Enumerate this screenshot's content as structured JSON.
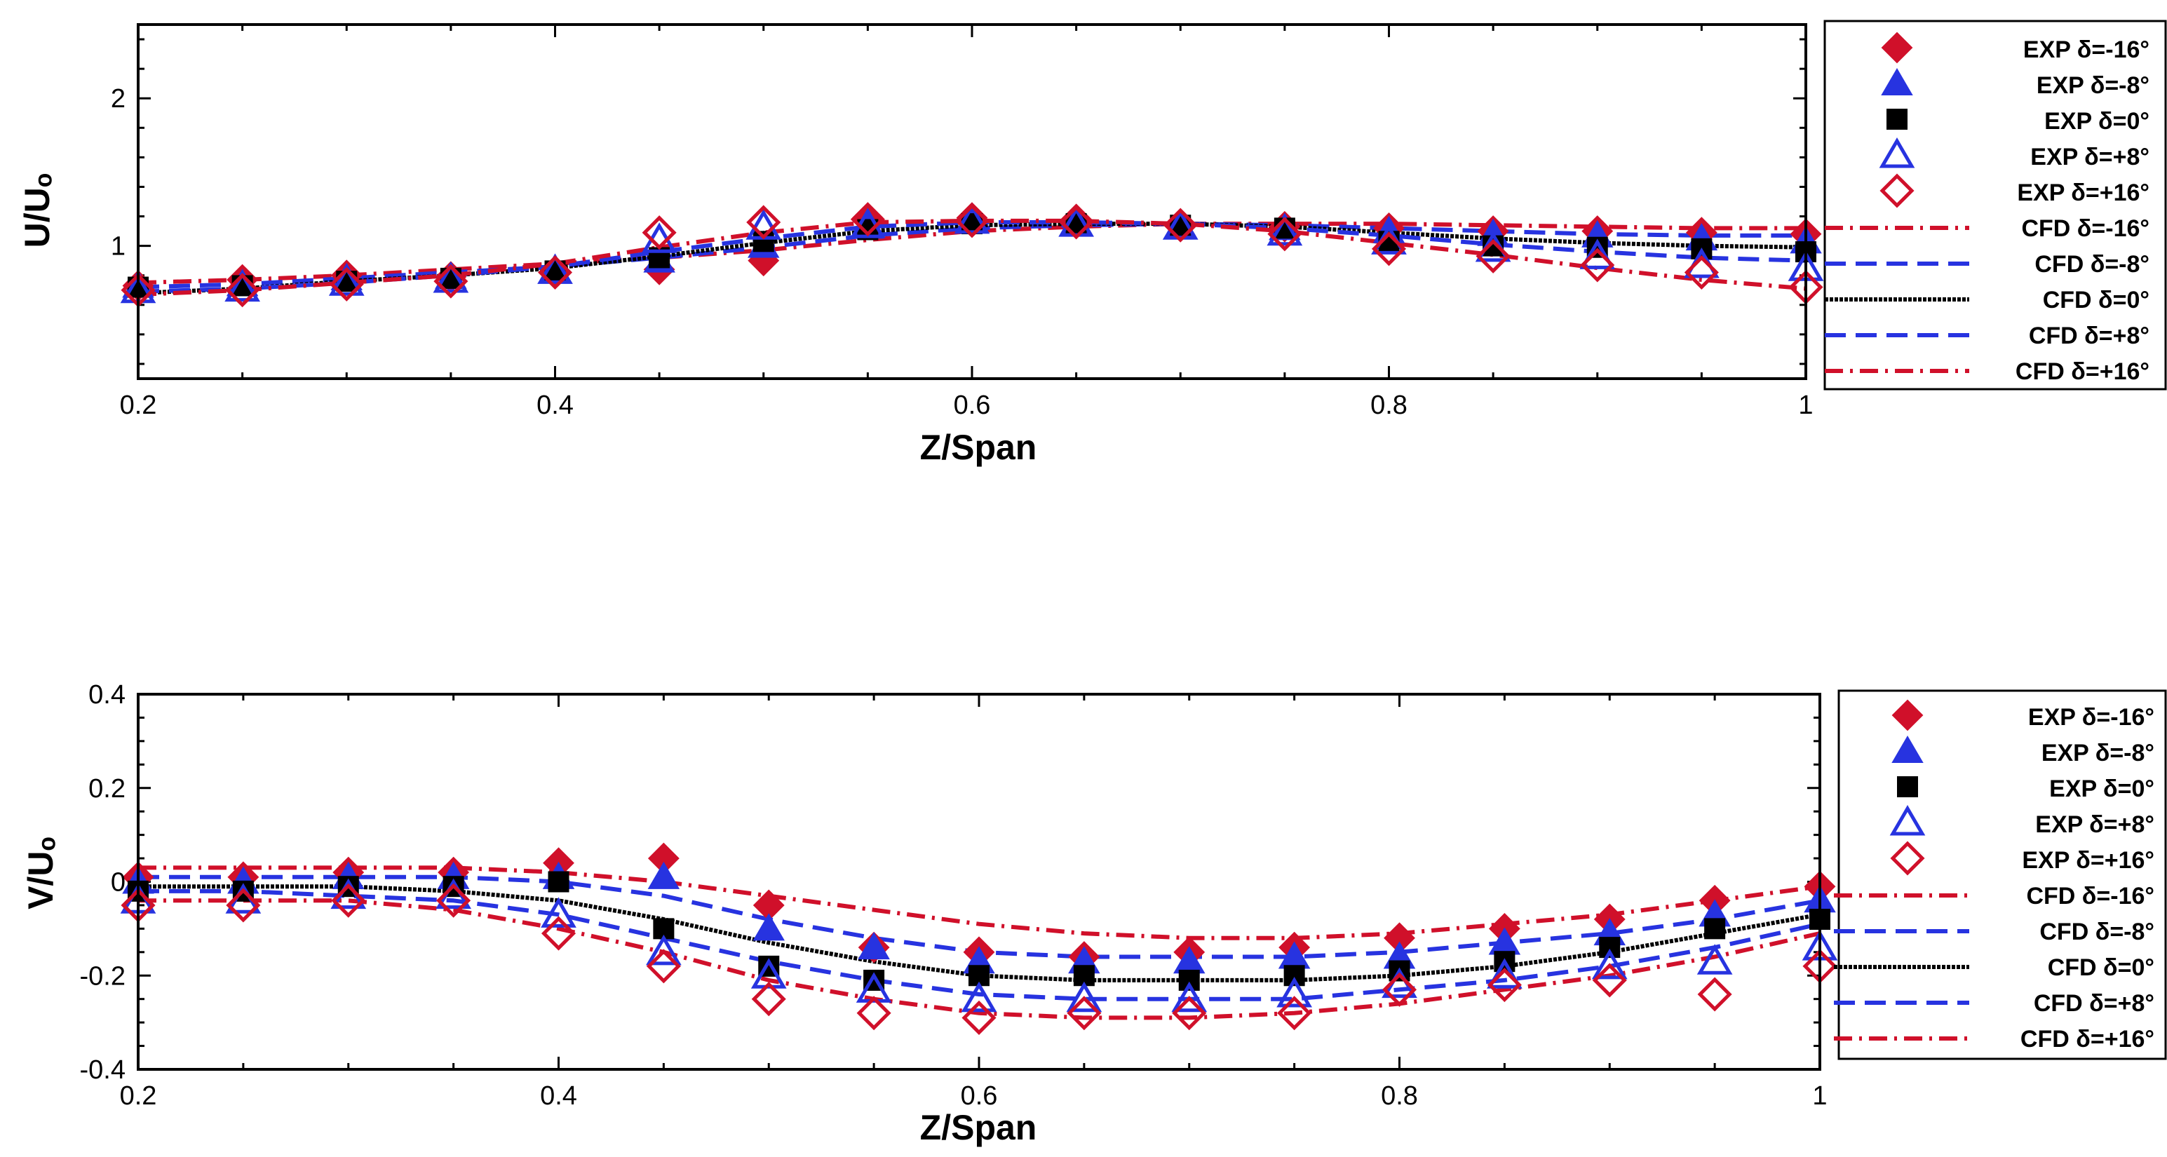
{
  "chart_data": [
    {
      "type": "line",
      "id": "u",
      "xlabel": "Z/Span",
      "ylabel": "U/Uₒ",
      "xlim": [
        0.2,
        1.0
      ],
      "ylim": [
        0.1,
        2.5
      ],
      "xticks": [
        {
          "value": 0.2,
          "label": "0.2"
        },
        {
          "value": 0.4,
          "label": "0.4"
        },
        {
          "value": 0.6,
          "label": "0.6"
        },
        {
          "value": 0.8,
          "label": "0.8"
        },
        {
          "value": 1.0,
          "label": "1"
        }
      ],
      "yticks": [
        {
          "value": 1,
          "label": "1"
        },
        {
          "value": 2,
          "label": "2"
        }
      ],
      "legend_position": "right",
      "x": [
        0.2,
        0.25,
        0.3,
        0.35,
        0.4,
        0.45,
        0.5,
        0.55,
        0.6,
        0.65,
        0.7,
        0.75,
        0.8,
        0.85,
        0.9,
        0.95,
        1.0
      ],
      "exp_series": [
        {
          "name": "EXP δ=-16°",
          "marker": "diamond",
          "filled": true,
          "color": "#d0102a",
          "values": [
            0.73,
            0.77,
            0.8,
            0.79,
            0.82,
            0.84,
            0.9,
            1.19,
            1.19,
            1.18,
            1.15,
            1.13,
            1.12,
            1.1,
            1.1,
            1.09,
            1.08
          ]
        },
        {
          "name": "EXP δ=-8°",
          "marker": "triangle",
          "filled": true,
          "color": "#2733e0",
          "values": [
            0.73,
            0.74,
            0.78,
            0.79,
            0.84,
            0.9,
            1.0,
            1.13,
            1.18,
            1.16,
            1.14,
            1.12,
            1.1,
            1.08,
            1.07,
            1.05,
            1.03
          ]
        },
        {
          "name": "EXP δ=0°",
          "marker": "square",
          "filled": true,
          "color": "#000000",
          "values": [
            0.72,
            0.73,
            0.76,
            0.78,
            0.83,
            0.92,
            1.03,
            1.11,
            1.15,
            1.15,
            1.14,
            1.12,
            1.03,
            1.0,
            0.99,
            0.98,
            0.96
          ]
        },
        {
          "name": "EXP δ=+8°",
          "marker": "triangle",
          "filled": false,
          "color": "#2733e0",
          "values": [
            0.7,
            0.71,
            0.75,
            0.77,
            0.83,
            1.04,
            1.13,
            1.14,
            1.17,
            1.15,
            1.13,
            1.09,
            1.03,
            0.98,
            0.93,
            0.87,
            0.85
          ]
        },
        {
          "name": "EXP δ=+16°",
          "marker": "diamond",
          "filled": false,
          "color": "#d0102a",
          "values": [
            0.7,
            0.7,
            0.74,
            0.76,
            0.82,
            1.09,
            1.16,
            1.18,
            1.17,
            1.16,
            1.14,
            1.08,
            0.98,
            0.93,
            0.87,
            0.82,
            0.72
          ]
        }
      ],
      "cfd_series": [
        {
          "name": "CFD δ=-16°",
          "dash": "dashdot",
          "color": "#d0102a",
          "values": [
            0.75,
            0.77,
            0.8,
            0.84,
            0.88,
            0.92,
            0.97,
            1.04,
            1.1,
            1.13,
            1.15,
            1.15,
            1.15,
            1.14,
            1.13,
            1.12,
            1.12
          ]
        },
        {
          "name": "CFD δ=-8°",
          "dash": "dash",
          "color": "#2733e0",
          "values": [
            0.72,
            0.74,
            0.78,
            0.82,
            0.86,
            0.92,
            0.99,
            1.07,
            1.12,
            1.14,
            1.15,
            1.14,
            1.12,
            1.1,
            1.08,
            1.07,
            1.07
          ]
        },
        {
          "name": "CFD δ=0°",
          "dash": "dotted",
          "color": "#000000",
          "values": [
            0.68,
            0.71,
            0.76,
            0.8,
            0.85,
            0.93,
            1.02,
            1.1,
            1.14,
            1.15,
            1.15,
            1.13,
            1.09,
            1.05,
            1.02,
            1.0,
            0.99
          ]
        },
        {
          "name": "CFD δ=+8°",
          "dash": "dash",
          "color": "#2733e0",
          "values": [
            0.69,
            0.71,
            0.75,
            0.8,
            0.86,
            0.96,
            1.05,
            1.13,
            1.16,
            1.16,
            1.15,
            1.12,
            1.07,
            1.01,
            0.96,
            0.92,
            0.9
          ]
        },
        {
          "name": "CFD δ=+16°",
          "dash": "dashdot",
          "color": "#d0102a",
          "values": [
            0.67,
            0.7,
            0.75,
            0.8,
            0.88,
            0.99,
            1.09,
            1.16,
            1.17,
            1.17,
            1.15,
            1.1,
            1.02,
            0.94,
            0.85,
            0.77,
            0.71
          ]
        }
      ]
    },
    {
      "type": "line",
      "id": "v",
      "xlabel": "Z/Span",
      "ylabel": "V/Uₒ",
      "xlim": [
        0.2,
        1.0
      ],
      "ylim": [
        -0.4,
        0.4
      ],
      "xticks": [
        {
          "value": 0.2,
          "label": "0.2"
        },
        {
          "value": 0.4,
          "label": "0.4"
        },
        {
          "value": 0.6,
          "label": "0.6"
        },
        {
          "value": 0.8,
          "label": "0.8"
        },
        {
          "value": 1.0,
          "label": "1"
        }
      ],
      "yticks": [
        {
          "value": -0.4,
          "label": "-0.4"
        },
        {
          "value": -0.2,
          "label": "-0.2"
        },
        {
          "value": 0,
          "label": "0"
        },
        {
          "value": 0.2,
          "label": "0.2"
        },
        {
          "value": 0.4,
          "label": "0.4"
        }
      ],
      "legend_position": "right",
      "x": [
        0.2,
        0.25,
        0.3,
        0.35,
        0.4,
        0.45,
        0.5,
        0.55,
        0.6,
        0.65,
        0.7,
        0.75,
        0.8,
        0.85,
        0.9,
        0.95,
        1.0
      ],
      "exp_series": [
        {
          "name": "EXP δ=-16°",
          "marker": "diamond",
          "filled": true,
          "color": "#d0102a",
          "values": [
            0.01,
            0.01,
            0.02,
            0.02,
            0.04,
            0.05,
            -0.05,
            -0.14,
            -0.15,
            -0.16,
            -0.15,
            -0.14,
            -0.12,
            -0.1,
            -0.08,
            -0.04,
            -0.01
          ]
        },
        {
          "name": "EXP δ=-8°",
          "marker": "triangle",
          "filled": true,
          "color": "#2733e0",
          "values": [
            0.0,
            0.0,
            0.01,
            0.01,
            0.01,
            0.01,
            -0.1,
            -0.14,
            -0.17,
            -0.17,
            -0.17,
            -0.16,
            -0.16,
            -0.13,
            -0.11,
            -0.07,
            -0.04
          ]
        },
        {
          "name": "EXP δ=0°",
          "marker": "square",
          "filled": true,
          "color": "#000000",
          "values": [
            -0.02,
            -0.02,
            -0.01,
            -0.01,
            0.0,
            -0.1,
            -0.18,
            -0.21,
            -0.2,
            -0.2,
            -0.21,
            -0.2,
            -0.19,
            -0.17,
            -0.14,
            -0.1,
            -0.08
          ]
        },
        {
          "name": "EXP δ=+8°",
          "marker": "triangle",
          "filled": false,
          "color": "#2733e0",
          "values": [
            -0.04,
            -0.04,
            -0.03,
            -0.03,
            -0.07,
            -0.15,
            -0.2,
            -0.23,
            -0.25,
            -0.25,
            -0.25,
            -0.24,
            -0.22,
            -0.2,
            -0.18,
            -0.17,
            -0.14
          ]
        },
        {
          "name": "EXP δ=+16°",
          "marker": "diamond",
          "filled": false,
          "color": "#d0102a",
          "values": [
            -0.05,
            -0.05,
            -0.04,
            -0.04,
            -0.11,
            -0.18,
            -0.25,
            -0.28,
            -0.29,
            -0.28,
            -0.28,
            -0.28,
            -0.23,
            -0.22,
            -0.21,
            -0.24,
            -0.18
          ]
        }
      ],
      "cfd_series": [
        {
          "name": "CFD δ=-16°",
          "dash": "dashdot",
          "color": "#d0102a",
          "values": [
            0.03,
            0.03,
            0.03,
            0.03,
            0.02,
            0.0,
            -0.03,
            -0.06,
            -0.09,
            -0.11,
            -0.12,
            -0.12,
            -0.11,
            -0.09,
            -0.07,
            -0.04,
            -0.01
          ]
        },
        {
          "name": "CFD δ=-8°",
          "dash": "dash",
          "color": "#2733e0",
          "values": [
            0.01,
            0.01,
            0.01,
            0.01,
            0.0,
            -0.03,
            -0.08,
            -0.12,
            -0.15,
            -0.16,
            -0.16,
            -0.16,
            -0.15,
            -0.13,
            -0.11,
            -0.08,
            -0.04
          ]
        },
        {
          "name": "CFD δ=0°",
          "dash": "dotted",
          "color": "#000000",
          "values": [
            -0.01,
            -0.01,
            -0.01,
            -0.02,
            -0.04,
            -0.08,
            -0.13,
            -0.17,
            -0.2,
            -0.21,
            -0.21,
            -0.21,
            -0.2,
            -0.18,
            -0.15,
            -0.11,
            -0.07
          ]
        },
        {
          "name": "CFD δ=+8°",
          "dash": "dash",
          "color": "#2733e0",
          "values": [
            -0.02,
            -0.02,
            -0.03,
            -0.04,
            -0.07,
            -0.12,
            -0.17,
            -0.21,
            -0.24,
            -0.25,
            -0.25,
            -0.25,
            -0.23,
            -0.21,
            -0.18,
            -0.14,
            -0.09
          ]
        },
        {
          "name": "CFD δ=+16°",
          "dash": "dashdot",
          "color": "#d0102a",
          "values": [
            -0.04,
            -0.04,
            -0.04,
            -0.06,
            -0.1,
            -0.15,
            -0.21,
            -0.25,
            -0.28,
            -0.29,
            -0.29,
            -0.28,
            -0.26,
            -0.23,
            -0.2,
            -0.16,
            -0.11
          ]
        }
      ]
    }
  ]
}
